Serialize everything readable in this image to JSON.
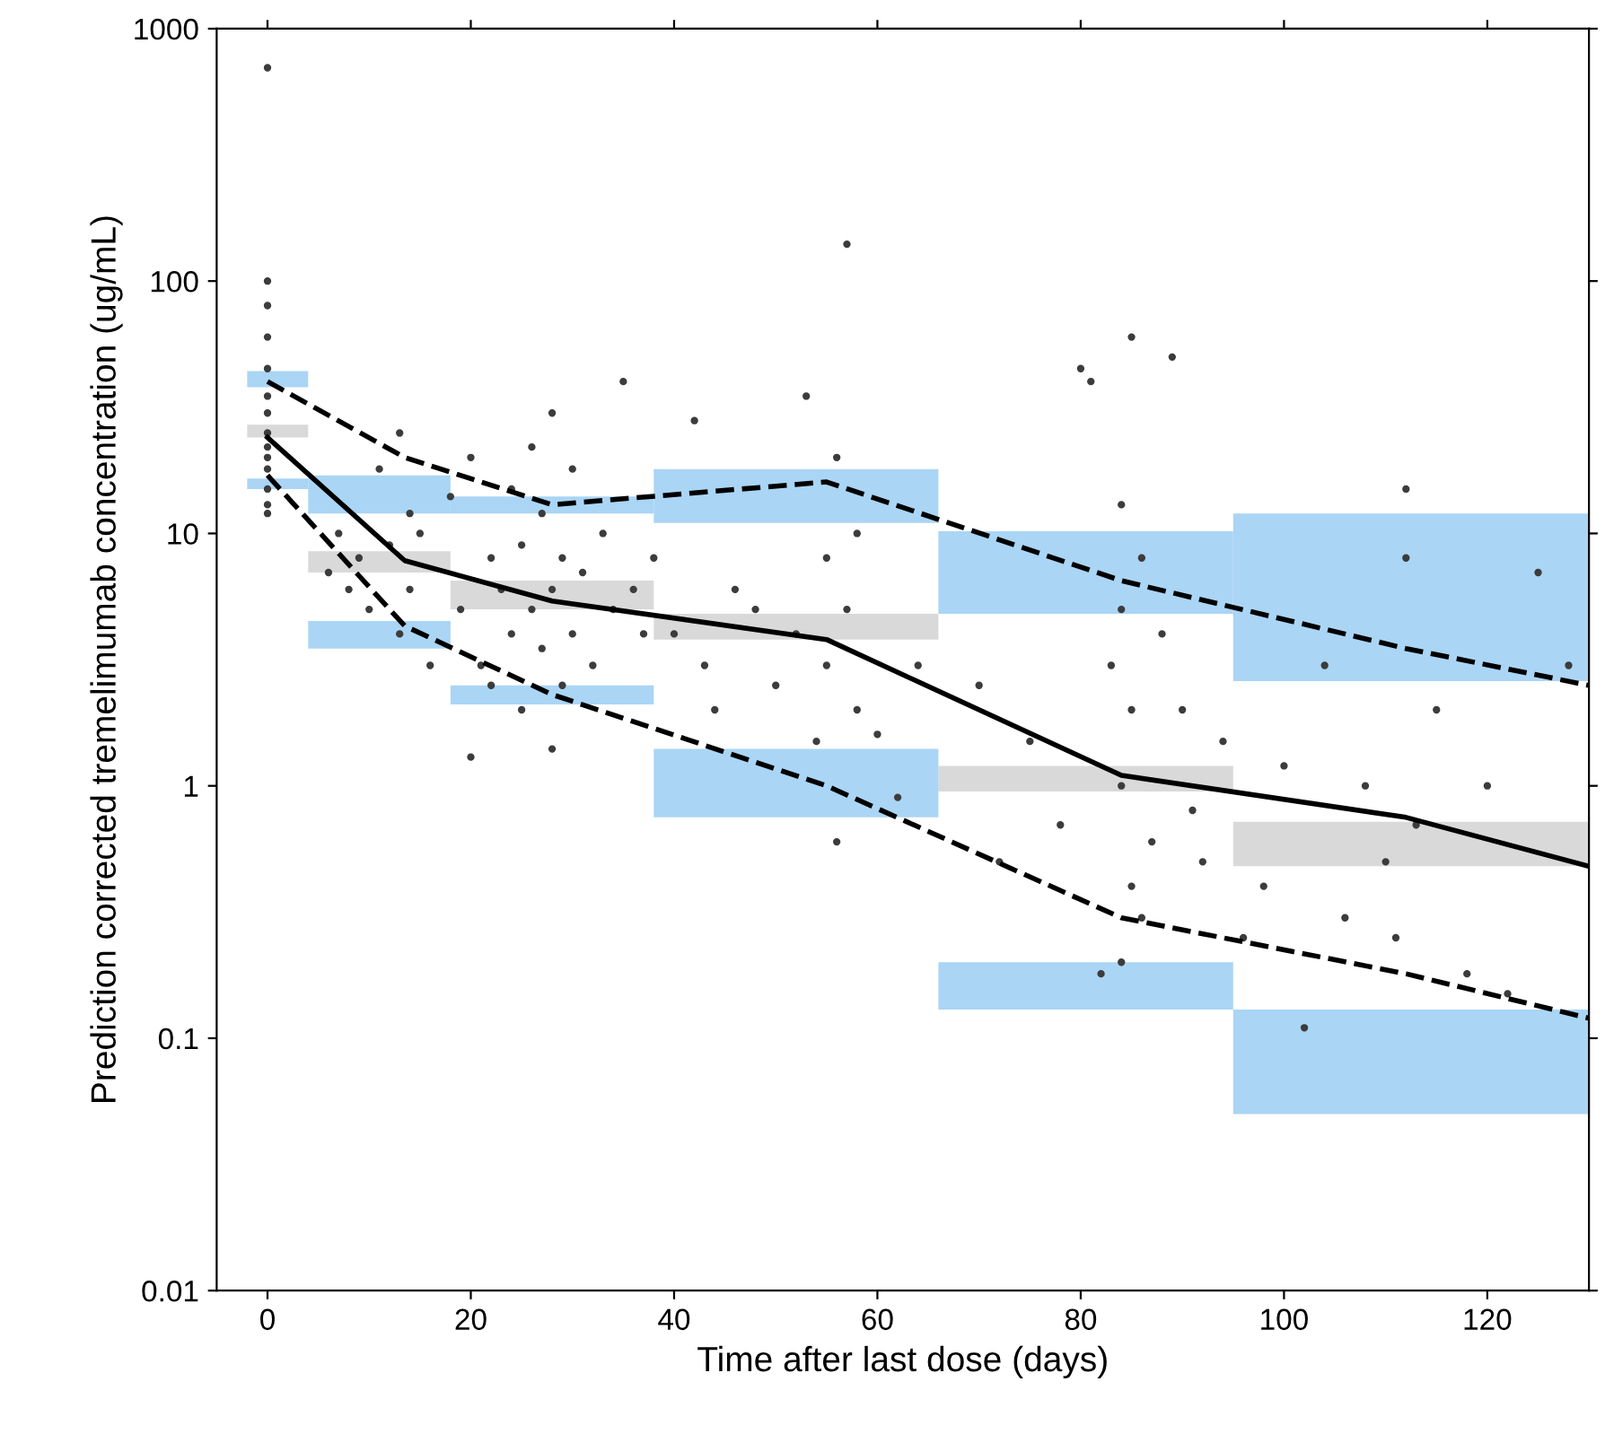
{
  "chart_data": {
    "type": "scatter",
    "xlabel": "Time after last dose (days)",
    "ylabel": "Prediction corrected tremelimumab concentration (ug/mL)",
    "log": "y",
    "xlim": [
      -5,
      130
    ],
    "xticks": [
      0,
      20,
      40,
      60,
      80,
      100,
      120
    ],
    "ylim": [
      0.01,
      1000
    ],
    "yticks": [
      0.01,
      0.1,
      1,
      10,
      100,
      1000
    ],
    "grid": false,
    "legend": false,
    "series": [
      {
        "type": "histogram",
        "color": "#aad5f5",
        "bins": [
          -2,
          4,
          18,
          38,
          66,
          95,
          130
        ],
        "values": [
          6,
          5,
          2,
          7,
          5.4,
          9.4
        ],
        "base": [
          38,
          12,
          12,
          11,
          4.8,
          2.6
        ]
      },
      {
        "type": "histogram",
        "color": "#d9d9d9",
        "bins": [
          -2,
          4,
          18,
          38,
          66,
          95,
          130
        ],
        "values": [
          3,
          1.5,
          1.5,
          1,
          0.25,
          0.24
        ],
        "base": [
          24,
          7,
          5,
          3.8,
          0.95,
          0.48
        ]
      },
      {
        "type": "histogram",
        "color": "#aad5f5",
        "bins": [
          -2,
          4,
          18,
          38,
          66,
          95,
          130
        ],
        "values": [
          1.5,
          1,
          0.4,
          0.65,
          0.07,
          0.08
        ],
        "base": [
          15,
          3.5,
          2.1,
          0.75,
          0.13,
          0.05
        ]
      },
      {
        "color": "#3c3c3c",
        "marker": "circle",
        "x": [
          0,
          0,
          0,
          0,
          0,
          0,
          0,
          0,
          0,
          0,
          0,
          0,
          0,
          0,
          6,
          7,
          8,
          9,
          10,
          11,
          12,
          13,
          13,
          14,
          14,
          15,
          16,
          18,
          19,
          20,
          20,
          21,
          22,
          22,
          23,
          24,
          24,
          25,
          25,
          26,
          26,
          27,
          27,
          28,
          28,
          28,
          29,
          29,
          30,
          30,
          31,
          32,
          33,
          34,
          35,
          36,
          37,
          38,
          40,
          42,
          43,
          44,
          46,
          48,
          50,
          52,
          53,
          54,
          55,
          55,
          56,
          56,
          57,
          57,
          58,
          58,
          60,
          62,
          64,
          70,
          72,
          75,
          78,
          80,
          81,
          82,
          83,
          84,
          84,
          84,
          84,
          85,
          85,
          85,
          86,
          86,
          87,
          88,
          89,
          90,
          91,
          92,
          94,
          96,
          98,
          100,
          102,
          104,
          106,
          108,
          110,
          111,
          112,
          112,
          113,
          115,
          118,
          120,
          122,
          125,
          128
        ],
        "values": [
          700,
          100,
          80,
          60,
          45,
          35,
          30,
          25,
          22,
          20,
          18,
          15,
          13,
          12,
          7,
          10,
          6,
          8,
          5,
          18,
          9,
          4,
          25,
          6,
          12,
          10,
          3,
          14,
          5,
          20,
          1.3,
          3,
          8,
          2.5,
          6,
          4,
          15,
          9,
          2,
          5,
          22,
          3.5,
          12,
          6,
          1.4,
          30,
          8,
          2.5,
          4,
          18,
          7,
          3,
          10,
          5,
          40,
          6,
          4,
          8,
          4,
          28,
          3,
          2,
          6,
          5,
          2.5,
          4,
          35,
          1.5,
          8,
          3,
          0.6,
          20,
          140,
          5,
          10,
          2,
          1.6,
          0.9,
          3,
          2.5,
          0.5,
          1.5,
          0.7,
          45,
          40,
          0.18,
          3,
          0.2,
          1,
          5,
          13,
          0.4,
          2,
          60,
          8,
          0.3,
          0.6,
          4,
          50,
          2,
          0.8,
          0.5,
          1.5,
          0.25,
          0.4,
          1.2,
          0.11,
          3,
          0.3,
          1,
          0.5,
          0.25,
          15,
          8,
          0.7,
          2,
          0.18,
          1,
          0.15,
          7,
          3
        ]
      },
      {
        "type": "line",
        "color": "#000000",
        "line_style": "solid",
        "x": [
          0,
          13.5,
          28,
          55,
          84,
          112,
          130
        ],
        "values": [
          24,
          7.8,
          5.4,
          3.8,
          1.1,
          0.75,
          0.48
        ]
      },
      {
        "type": "line",
        "color": "#000000",
        "line_style": "dashed",
        "x": [
          0,
          13.5,
          28,
          55,
          84,
          112,
          130
        ],
        "values": [
          40,
          20,
          13,
          16,
          6.5,
          3.5,
          2.5
        ]
      },
      {
        "type": "line",
        "color": "#000000",
        "line_style": "dashed",
        "x": [
          0,
          13.5,
          28,
          55,
          84,
          112,
          130
        ],
        "values": [
          17,
          4.3,
          2.3,
          1.0,
          0.3,
          0.18,
          0.12
        ]
      }
    ]
  }
}
